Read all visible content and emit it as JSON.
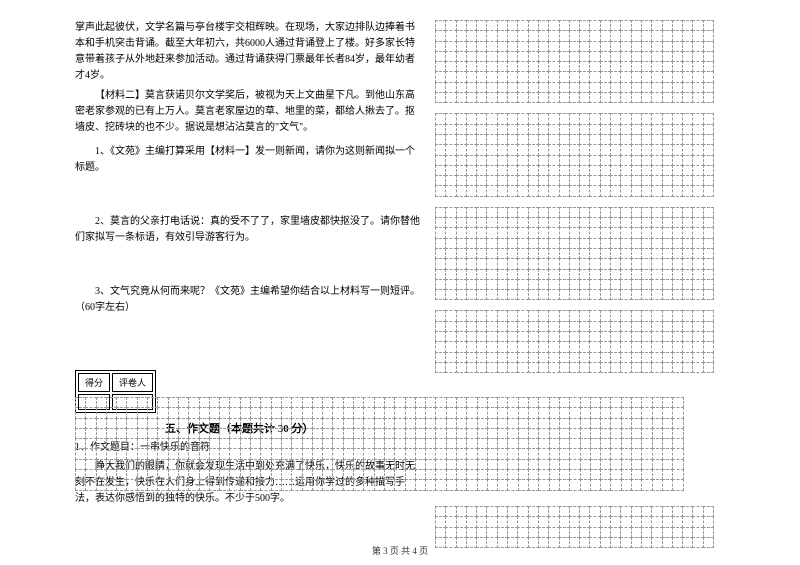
{
  "leftColumn": {
    "para1": "掌声此起彼伏，文学名篇与亭台楼宇交相辉映。在现场，大家边排队边捧着书本和手机突击背诵。截至大年初六，共6000人通过背诵登上了楼。好多家长特意带着孩子从外地赶来参加活动。通过背诵获得门票最年长者84岁，最年幼者才4岁。",
    "para2Label": "【材料二】",
    "para2": "莫言获诺贝尔文学奖后，被视为天上文曲星下凡。到他山东高密老家参观的已有上万人。莫言老家屋边的草、地里的菜，都给人揪去了。抠墙皮、挖砖块的也不少。据说是想沾沾莫言的\"文气\"。",
    "q1": "1、《文苑》主编打算采用【材料一】发一则新闻，请你为这则新闻拟一个标题。",
    "q2": "2、莫言的父亲打电话说：真的受不了了，家里墙皮都快抠没了。请你替他们家拟写一条标语，有效引导游客行为。",
    "q3": "3、文气究竟从何而来呢？《文苑》主编希望你结合以上材料写一则短评。（60字左右）",
    "scoreHeaders": [
      "得分",
      "评卷人"
    ],
    "sectionTitle": "五、作文题（本题共计 30 分）",
    "essayNum": "1、作文题目：一串快乐的音符",
    "essayBody": "睁大我们的眼睛，你就会发现生活中到处充满了快乐，快乐的故事无时无刻不在发生，快乐在人们身上得到传递和接力……运用你学过的多种描写手法，表达你感悟到的独特的快乐。不少于500字。"
  },
  "grids": {
    "rightBlocks": [
      {
        "rows": 8,
        "cols": 27
      },
      {
        "rows": 8,
        "cols": 27
      },
      {
        "rows": 9,
        "cols": 27
      },
      {
        "rows": 6,
        "cols": 27
      }
    ],
    "fullWidth": {
      "rows": 9,
      "cols": 59
    },
    "rightBottom": {
      "rows": 4,
      "cols": 27
    },
    "cellSize": 11.3,
    "borderColor": "#999999"
  },
  "footer": "第 3 页 共 4 页"
}
